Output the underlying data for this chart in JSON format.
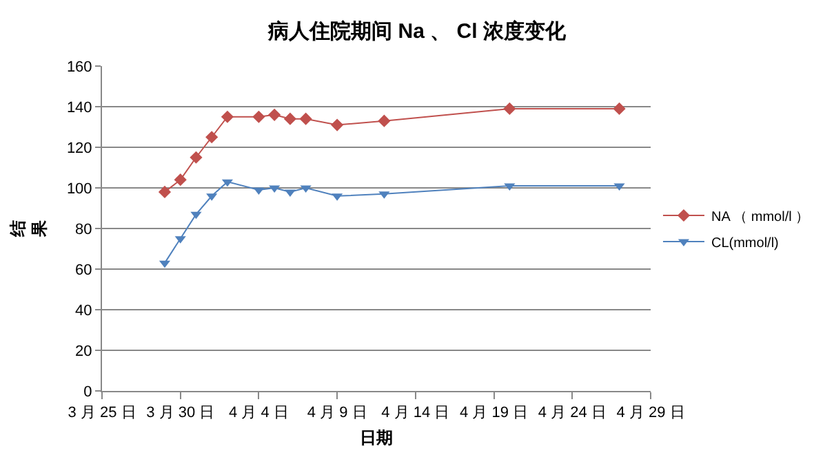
{
  "chart_data": {
    "type": "line",
    "title": "病人住院期间 Na 、 Cl 浓度变化",
    "xlabel": "日期",
    "ylabel": "结果",
    "x": [
      "--03-29",
      "--03-30",
      "--03-31",
      "--04-01",
      "--04-02",
      "--04-04",
      "--04-05",
      "--04-06",
      "--04-07",
      "--04-09",
      "--04-12",
      "--04-20",
      "--04-27"
    ],
    "series": [
      {
        "name": "NA （ mmol/l ）",
        "color": "#c0504d",
        "marker": "diamond",
        "values": [
          98,
          104,
          115,
          125,
          135,
          135,
          136,
          134,
          134,
          131,
          133,
          139,
          139
        ]
      },
      {
        "name": "CL(mmol/l)",
        "color": "#4f81bd",
        "marker": "triangle",
        "values": [
          63,
          75,
          87,
          96,
          103,
          99,
          100,
          98,
          100,
          96,
          97,
          101,
          101
        ]
      }
    ],
    "xlim": [
      "--03-25",
      "--04-29"
    ],
    "xticks": [
      {
        "value": "--03-25",
        "label": "3 月 25 日"
      },
      {
        "value": "--03-30",
        "label": "3 月 30 日"
      },
      {
        "value": "--04-04",
        "label": "4 月 4 日"
      },
      {
        "value": "--04-09",
        "label": "4 月 9 日"
      },
      {
        "value": "--04-14",
        "label": "4 月 14 日"
      },
      {
        "value": "--04-19",
        "label": "4 月 19 日"
      },
      {
        "value": "--04-24",
        "label": "4 月 24 日"
      },
      {
        "value": "--04-29",
        "label": "4 月 29 日"
      }
    ],
    "ylim": [
      0,
      160
    ],
    "yticks": [
      0,
      20,
      40,
      60,
      80,
      100,
      120,
      140,
      160
    ],
    "grid": "y",
    "legend": "right",
    "line_style": "solid"
  }
}
